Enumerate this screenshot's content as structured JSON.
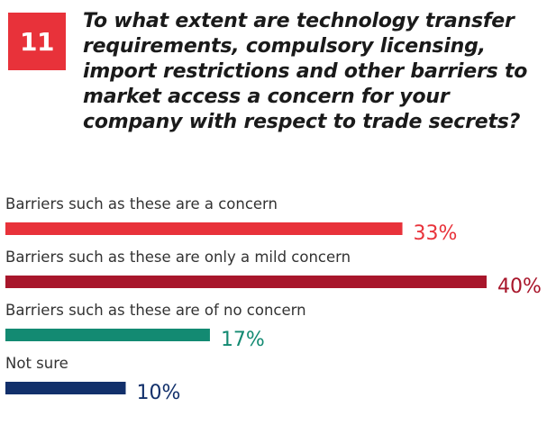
{
  "question_number": "11",
  "question": "To what extent are technology transfer requirements, compulsory licensing, import restrictions and other barriers to market access a concern for your company with respect to trade secrets?",
  "colors": {
    "badge": "#e8323a",
    "text": "#1a1a1a"
  },
  "chart_data": {
    "type": "bar",
    "orientation": "horizontal",
    "categories": [
      "Barriers such as these are a concern",
      "Barriers such as these are only a mild concern",
      "Barriers such as these are of no concern",
      "Not sure"
    ],
    "values": [
      33,
      40,
      17,
      10
    ],
    "value_labels": [
      "33%",
      "40%",
      "17%",
      "10%"
    ],
    "colors": [
      "#e8323a",
      "#a8162b",
      "#138a72",
      "#12306b"
    ],
    "title": "",
    "xlabel": "",
    "ylabel": "",
    "xlim": [
      0,
      40
    ],
    "grid": false
  }
}
